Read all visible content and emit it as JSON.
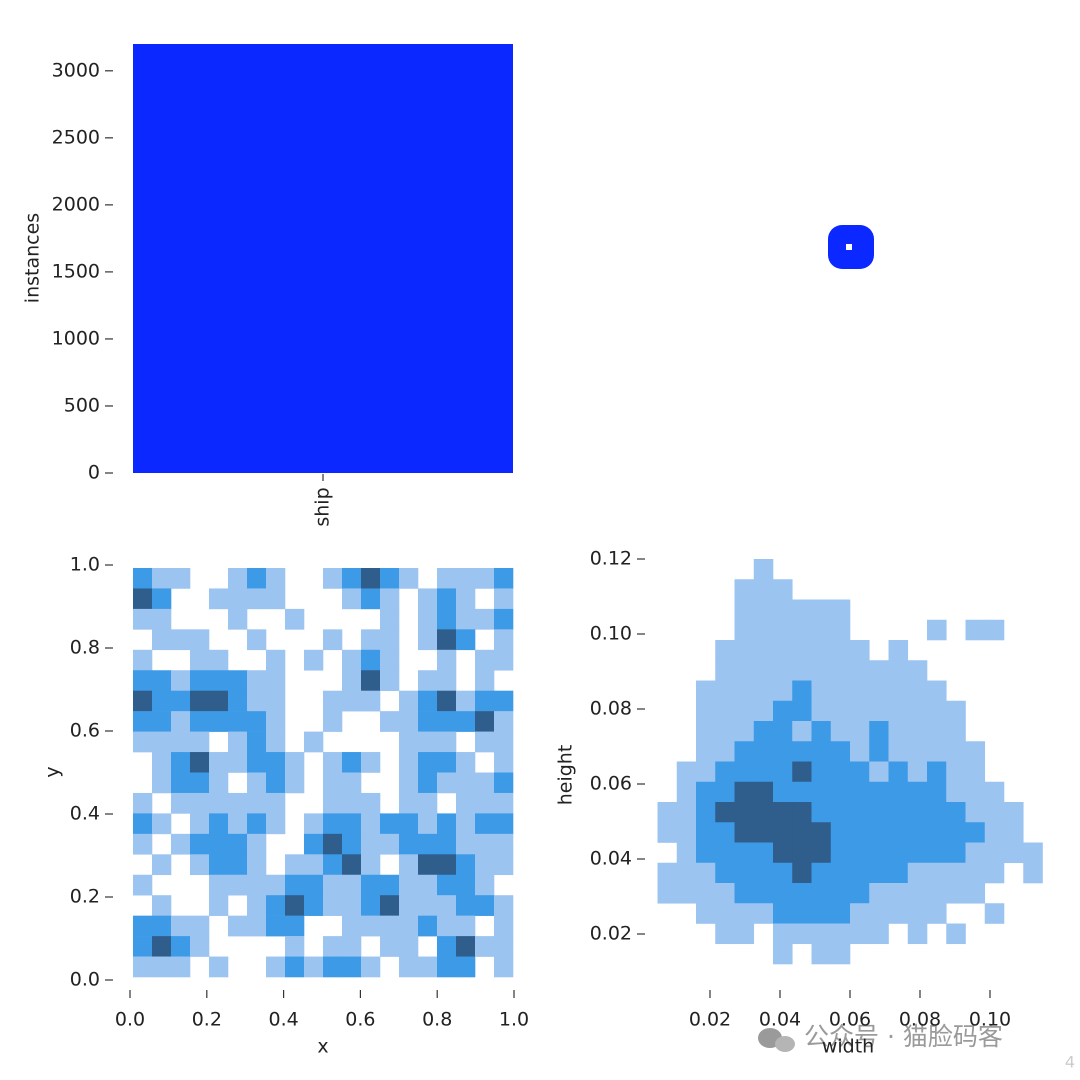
{
  "chart_data": [
    {
      "type": "bar",
      "categories": [
        "ship"
      ],
      "values": [
        3200
      ],
      "color": "#0a28ff",
      "ylim": [
        0,
        3200
      ],
      "yticks": [
        0,
        500,
        1000,
        1500,
        2000,
        2500,
        3000
      ],
      "ylabel": "instances"
    },
    {
      "type": "hist2d",
      "xlabel": "x",
      "ylabel": "y",
      "xlim": [
        0,
        1
      ],
      "ylim": [
        0,
        1
      ],
      "xticks": [
        {
          "value": 0,
          "label": "0.0"
        },
        0.2,
        0.4,
        0.6,
        0.8,
        {
          "value": 1,
          "label": "1.0"
        }
      ],
      "yticks": [
        {
          "value": 0,
          "label": "0.0"
        },
        0.2,
        0.4,
        0.6,
        0.8,
        {
          "value": 1,
          "label": "1.0"
        }
      ],
      "colors": [
        "none",
        "#9cc4f0",
        "#3d9ae6",
        "#2f5d8c"
      ],
      "values": [
        [
          2,
          1,
          1,
          0,
          0,
          1,
          2,
          1,
          0,
          0,
          1,
          2,
          3,
          2,
          1,
          0,
          1,
          1,
          1,
          2
        ],
        [
          3,
          2,
          0,
          0,
          1,
          1,
          1,
          1,
          0,
          0,
          0,
          1,
          2,
          1,
          0,
          1,
          2,
          1,
          0,
          1
        ],
        [
          1,
          1,
          0,
          0,
          0,
          1,
          0,
          0,
          1,
          0,
          0,
          0,
          0,
          1,
          0,
          1,
          2,
          1,
          1,
          2
        ],
        [
          0,
          1,
          1,
          1,
          0,
          0,
          1,
          0,
          0,
          0,
          1,
          0,
          1,
          1,
          0,
          1,
          3,
          2,
          0,
          1
        ],
        [
          1,
          0,
          0,
          1,
          1,
          0,
          0,
          1,
          0,
          1,
          0,
          1,
          2,
          1,
          0,
          0,
          1,
          0,
          1,
          1
        ],
        [
          2,
          2,
          1,
          2,
          2,
          2,
          1,
          1,
          0,
          0,
          0,
          1,
          3,
          1,
          0,
          1,
          1,
          0,
          1,
          0
        ],
        [
          3,
          2,
          2,
          3,
          3,
          2,
          1,
          1,
          0,
          0,
          1,
          1,
          1,
          0,
          1,
          2,
          3,
          1,
          2,
          2
        ],
        [
          2,
          2,
          1,
          2,
          2,
          2,
          2,
          1,
          0,
          0,
          1,
          0,
          0,
          1,
          1,
          2,
          2,
          2,
          3,
          1
        ],
        [
          1,
          1,
          1,
          1,
          0,
          1,
          2,
          1,
          0,
          1,
          0,
          0,
          0,
          0,
          1,
          1,
          1,
          0,
          1,
          1
        ],
        [
          0,
          1,
          2,
          3,
          1,
          1,
          2,
          2,
          1,
          0,
          1,
          2,
          1,
          0,
          1,
          2,
          2,
          1,
          0,
          1
        ],
        [
          0,
          1,
          2,
          2,
          1,
          0,
          1,
          2,
          1,
          0,
          1,
          1,
          0,
          0,
          1,
          2,
          1,
          1,
          1,
          2
        ],
        [
          1,
          0,
          1,
          1,
          1,
          1,
          1,
          1,
          0,
          0,
          1,
          1,
          1,
          0,
          1,
          1,
          0,
          1,
          1,
          1
        ],
        [
          2,
          1,
          0,
          1,
          2,
          1,
          2,
          1,
          0,
          1,
          2,
          2,
          1,
          2,
          2,
          1,
          2,
          1,
          2,
          2
        ],
        [
          1,
          0,
          1,
          2,
          2,
          2,
          1,
          0,
          0,
          2,
          3,
          2,
          1,
          1,
          2,
          2,
          2,
          1,
          1,
          1
        ],
        [
          0,
          1,
          0,
          1,
          2,
          2,
          1,
          0,
          1,
          1,
          2,
          3,
          1,
          0,
          1,
          3,
          3,
          2,
          1,
          1
        ],
        [
          1,
          0,
          0,
          0,
          1,
          1,
          1,
          1,
          2,
          2,
          1,
          1,
          2,
          2,
          1,
          1,
          2,
          2,
          1,
          0
        ],
        [
          0,
          1,
          0,
          0,
          1,
          0,
          1,
          2,
          3,
          2,
          1,
          1,
          2,
          3,
          1,
          1,
          1,
          2,
          2,
          1
        ],
        [
          2,
          2,
          1,
          1,
          0,
          1,
          1,
          2,
          2,
          0,
          0,
          1,
          1,
          1,
          1,
          2,
          1,
          1,
          0,
          1
        ],
        [
          2,
          3,
          2,
          1,
          0,
          0,
          0,
          0,
          1,
          0,
          1,
          1,
          0,
          1,
          1,
          0,
          2,
          3,
          1,
          1
        ],
        [
          1,
          1,
          1,
          0,
          1,
          0,
          0,
          1,
          2,
          1,
          2,
          2,
          1,
          0,
          1,
          1,
          2,
          2,
          0,
          1
        ]
      ]
    },
    {
      "type": "hist2d",
      "xlabel": "width",
      "ylabel": "height",
      "xlim": [
        0.005,
        0.115
      ],
      "ylim": [
        0.012,
        0.12
      ],
      "xticks": [
        0.02,
        0.04,
        0.06,
        0.08,
        {
          "value": 0.1,
          "label": "0.10"
        }
      ],
      "yticks": [
        0.02,
        0.04,
        0.06,
        0.08,
        {
          "value": 0.1,
          "label": "0.10"
        },
        0.12
      ],
      "colors": [
        "none",
        "#9cc4f0",
        "#3d9ae6",
        "#2f5d8c"
      ],
      "values": [
        [
          0,
          0,
          0,
          0,
          0,
          1,
          0,
          0,
          0,
          0,
          0,
          0,
          0,
          0,
          0,
          0,
          0,
          0,
          0,
          0
        ],
        [
          0,
          0,
          0,
          0,
          1,
          1,
          1,
          0,
          0,
          0,
          0,
          0,
          0,
          0,
          0,
          0,
          0,
          0,
          0,
          0
        ],
        [
          0,
          0,
          0,
          0,
          1,
          1,
          1,
          1,
          1,
          1,
          0,
          0,
          0,
          0,
          0,
          0,
          0,
          0,
          0,
          0
        ],
        [
          0,
          0,
          0,
          0,
          1,
          1,
          1,
          1,
          1,
          1,
          0,
          0,
          0,
          0,
          1,
          0,
          1,
          1,
          0,
          0
        ],
        [
          0,
          0,
          0,
          1,
          1,
          1,
          1,
          1,
          1,
          1,
          1,
          0,
          1,
          0,
          0,
          0,
          0,
          0,
          0,
          0
        ],
        [
          0,
          0,
          0,
          1,
          1,
          1,
          1,
          1,
          1,
          1,
          1,
          1,
          1,
          1,
          0,
          0,
          0,
          0,
          0,
          0
        ],
        [
          0,
          0,
          1,
          1,
          1,
          1,
          1,
          2,
          1,
          1,
          1,
          1,
          1,
          1,
          1,
          0,
          0,
          0,
          0,
          0
        ],
        [
          0,
          0,
          1,
          1,
          1,
          1,
          2,
          2,
          1,
          1,
          1,
          1,
          1,
          1,
          1,
          1,
          0,
          0,
          0,
          0
        ],
        [
          0,
          0,
          1,
          1,
          1,
          2,
          2,
          1,
          2,
          1,
          1,
          2,
          1,
          1,
          1,
          1,
          0,
          0,
          0,
          0
        ],
        [
          0,
          0,
          1,
          1,
          2,
          2,
          2,
          2,
          2,
          2,
          1,
          2,
          1,
          1,
          1,
          1,
          1,
          0,
          0,
          0
        ],
        [
          0,
          1,
          1,
          2,
          2,
          2,
          2,
          3,
          2,
          2,
          2,
          1,
          2,
          1,
          2,
          1,
          1,
          0,
          0,
          0
        ],
        [
          0,
          1,
          2,
          2,
          3,
          3,
          2,
          2,
          2,
          2,
          2,
          2,
          2,
          2,
          2,
          1,
          1,
          1,
          0,
          0
        ],
        [
          1,
          1,
          2,
          3,
          3,
          3,
          3,
          3,
          2,
          2,
          2,
          2,
          2,
          2,
          2,
          2,
          1,
          1,
          1,
          0
        ],
        [
          1,
          1,
          2,
          2,
          3,
          3,
          3,
          3,
          3,
          2,
          2,
          2,
          2,
          2,
          2,
          2,
          2,
          1,
          1,
          0
        ],
        [
          0,
          1,
          2,
          2,
          2,
          2,
          3,
          3,
          3,
          2,
          2,
          2,
          2,
          2,
          2,
          2,
          1,
          1,
          1,
          1
        ],
        [
          1,
          1,
          1,
          2,
          2,
          2,
          2,
          3,
          2,
          2,
          2,
          2,
          2,
          1,
          1,
          1,
          1,
          1,
          0,
          1
        ],
        [
          1,
          1,
          1,
          1,
          2,
          2,
          2,
          2,
          2,
          2,
          2,
          1,
          1,
          1,
          1,
          1,
          1,
          0,
          0,
          0
        ],
        [
          0,
          0,
          1,
          1,
          1,
          1,
          2,
          2,
          2,
          2,
          1,
          1,
          1,
          1,
          1,
          0,
          0,
          1,
          0,
          0
        ],
        [
          0,
          0,
          0,
          1,
          1,
          0,
          1,
          1,
          1,
          1,
          1,
          1,
          0,
          1,
          0,
          1,
          0,
          0,
          0,
          0
        ],
        [
          0,
          0,
          0,
          0,
          0,
          0,
          1,
          0,
          1,
          1,
          0,
          0,
          0,
          0,
          0,
          0,
          0,
          0,
          0,
          0
        ]
      ]
    }
  ],
  "watermark": "公众号 · 猫脸码客",
  "page_number": "4"
}
